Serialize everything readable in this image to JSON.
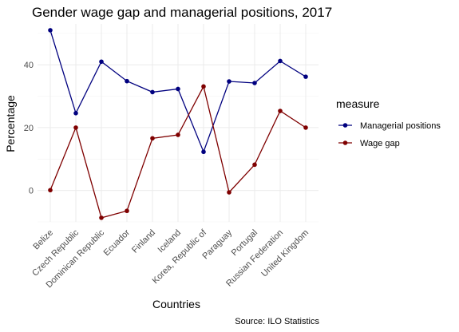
{
  "chart_data": {
    "type": "line",
    "title": "Gender wage gap and managerial positions, 2017",
    "xlabel": "Countries",
    "ylabel": "Percentage",
    "caption": "Source: ILO Statistics",
    "categories": [
      "Belize",
      "Czech Republic",
      "Dominican Republic",
      "Ecuador",
      "Finland",
      "Iceland",
      "Korea, Republic of",
      "Paraguay",
      "Portugal",
      "Russian Federation",
      "United Kingdom"
    ],
    "ylim": [
      -10,
      53
    ],
    "yticks": [
      0,
      20,
      40
    ],
    "grid": true,
    "legend": {
      "title": "measure",
      "placement": "right"
    },
    "series": [
      {
        "name": "Managerial positions",
        "color": "#00007f",
        "values": [
          51.0,
          24.6,
          41.0,
          34.8,
          31.3,
          32.3,
          12.3,
          34.7,
          34.2,
          41.2,
          36.2
        ]
      },
      {
        "name": "Wage gap",
        "color": "#7f0000",
        "values": [
          0.1,
          20.0,
          -8.7,
          -6.5,
          16.6,
          17.7,
          33.1,
          -0.6,
          8.2,
          25.3,
          20.0
        ]
      }
    ]
  }
}
